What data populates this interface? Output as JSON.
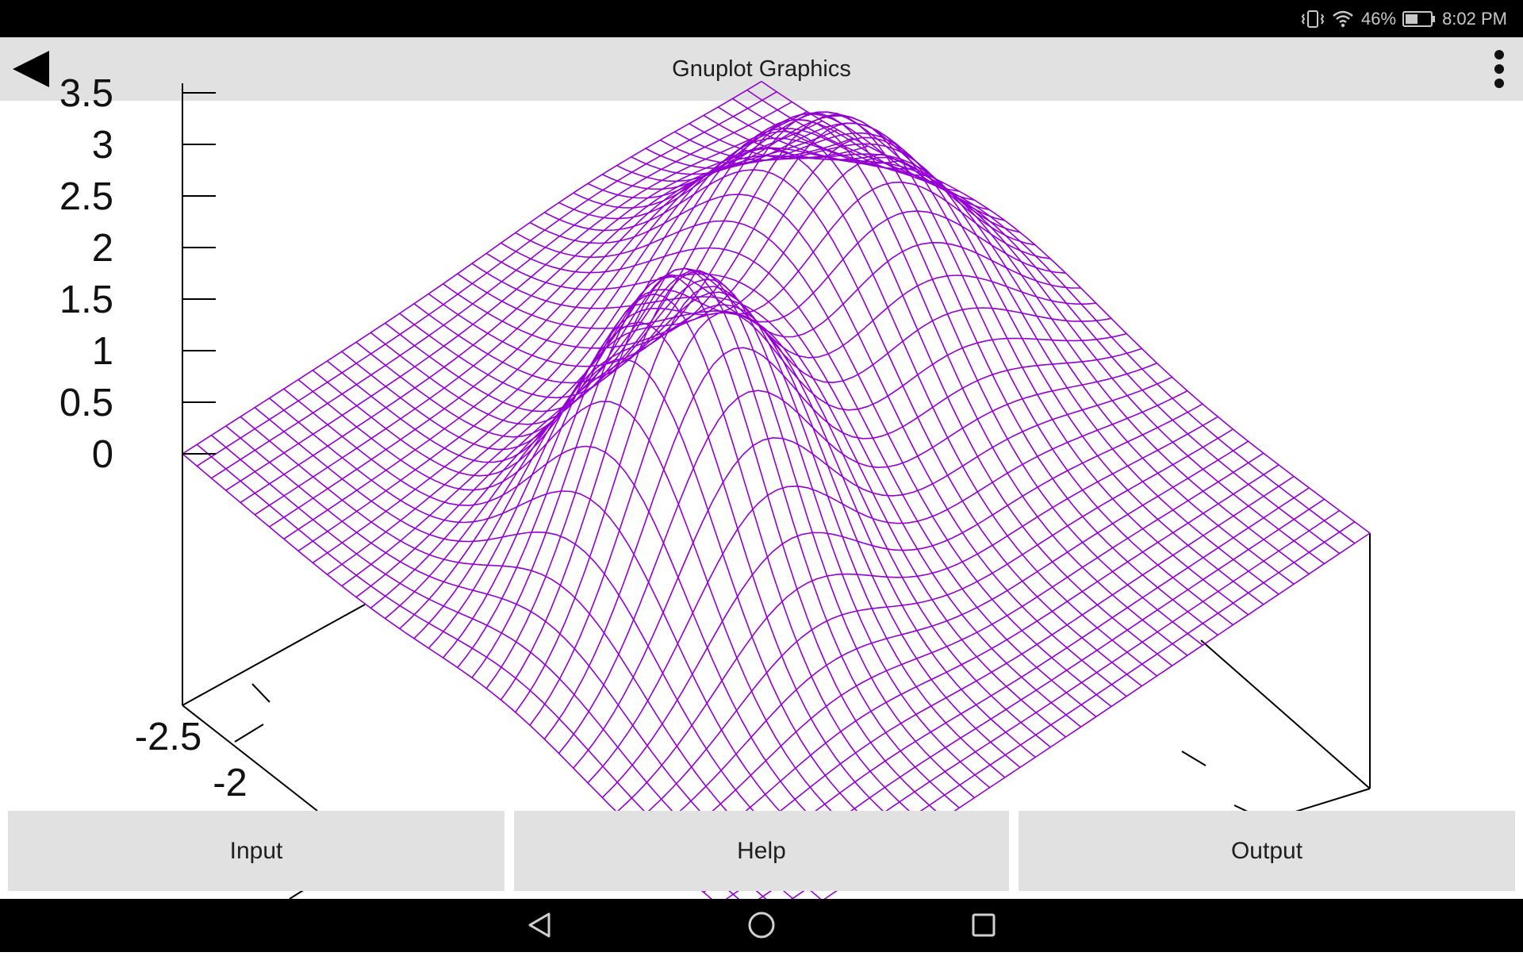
{
  "status_bar": {
    "battery_percent": "46%",
    "time": "8:02 PM",
    "icons": [
      "vibrate-icon",
      "wifi-icon",
      "battery-icon"
    ]
  },
  "app_bar": {
    "title": "Gnuplot Graphics",
    "back_icon": "back-arrow-icon",
    "menu_icon": "overflow-menu-icon"
  },
  "buttons": {
    "input": "Input",
    "help": "Help",
    "output": "Output"
  },
  "navigation": {
    "icons": [
      "nav-back-icon",
      "nav-home-icon",
      "nav-recents-icon"
    ]
  },
  "colors": {
    "surface_line": "#9400d3",
    "axis_line": "#000000",
    "bar_background": "#e1e1e1"
  },
  "chart_data": {
    "type": "surface",
    "z_ticks": [
      "3.5",
      "3",
      "2.5",
      "2",
      "1.5",
      "1",
      "0.5",
      "0"
    ],
    "y_ticks": [
      "-2.5",
      "-2"
    ],
    "zlim": [
      0,
      3.5
    ],
    "surface_color": "#9400d3",
    "peaks": [
      {
        "x": -0.8,
        "y": 0.8,
        "z": 3.1
      },
      {
        "x": 0.9,
        "y": -0.5,
        "z": 2.4
      }
    ]
  }
}
